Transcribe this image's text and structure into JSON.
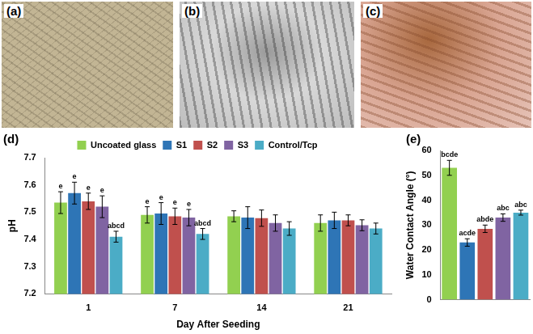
{
  "images": [
    {
      "label": "(a)"
    },
    {
      "label": "(b)"
    },
    {
      "label": "(c)"
    }
  ],
  "chart_data": [
    {
      "label": "(d)",
      "type": "bar",
      "x_label": "Day After Seeding",
      "y_label": "pH",
      "categories": [
        "1",
        "7",
        "14",
        "21"
      ],
      "ylim": [
        7.2,
        7.7
      ],
      "yticks": [
        7.2,
        7.3,
        7.4,
        7.5,
        7.6,
        7.7
      ],
      "grid": false,
      "legend": "top",
      "series": [
        {
          "name": "Uncoated glass",
          "color": "#92d050",
          "values": [
            7.535,
            7.49,
            7.485,
            7.46
          ],
          "errors": [
            0.04,
            0.03,
            0.02,
            0.03
          ],
          "letters": [
            "e",
            "e",
            null,
            null
          ]
        },
        {
          "name": "S1",
          "color": "#2e75b6",
          "values": [
            7.57,
            7.495,
            7.48,
            7.47
          ],
          "errors": [
            0.04,
            0.04,
            0.04,
            0.03
          ],
          "letters": [
            "e",
            "e",
            null,
            null
          ]
        },
        {
          "name": "S2",
          "color": "#c0504d",
          "values": [
            7.54,
            7.485,
            7.478,
            7.47
          ],
          "errors": [
            0.03,
            0.03,
            0.03,
            0.02
          ],
          "letters": [
            "e",
            "e",
            null,
            null
          ]
        },
        {
          "name": "S3",
          "color": "#8064a2",
          "values": [
            7.52,
            7.48,
            7.46,
            7.452
          ],
          "errors": [
            0.04,
            0.03,
            0.03,
            0.02
          ],
          "letters": [
            "e",
            "e",
            null,
            null
          ]
        },
        {
          "name": "Control/Tcp",
          "color": "#4bacc6",
          "values": [
            7.41,
            7.42,
            7.44,
            7.44
          ],
          "errors": [
            0.02,
            0.02,
            0.025,
            0.02
          ],
          "letters": [
            "abcd",
            "abcd",
            null,
            null
          ]
        }
      ]
    },
    {
      "label": "(e)",
      "type": "bar",
      "y_label": "Water Contact Angle (°)",
      "categories": [
        null,
        null,
        null,
        null,
        null
      ],
      "ylim": [
        0,
        60
      ],
      "yticks": [
        0,
        10,
        20,
        30,
        40,
        50,
        60
      ],
      "grid": false,
      "colors": [
        "#92d050",
        "#2e75b6",
        "#c0504d",
        "#8064a2",
        "#4bacc6"
      ],
      "values": [
        53,
        23,
        28.5,
        33,
        35
      ],
      "errors": [
        3,
        1.5,
        1.5,
        1.5,
        1
      ],
      "letters": [
        "bcde",
        "acde",
        "abde",
        "abc",
        "abc"
      ]
    }
  ]
}
